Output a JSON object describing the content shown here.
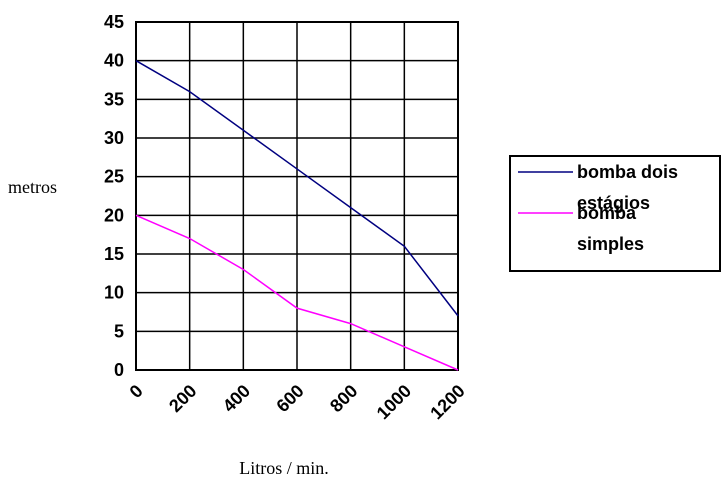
{
  "chart_data": {
    "type": "line",
    "title": "",
    "xlabel": "Litros / min.",
    "ylabel": "metros",
    "x": [
      0,
      200,
      400,
      600,
      800,
      1000,
      1200
    ],
    "x_ticks": [
      "0",
      "200",
      "400",
      "600",
      "800",
      "1000",
      "1200"
    ],
    "y_ticks": [
      "0",
      "5",
      "10",
      "15",
      "20",
      "25",
      "30",
      "35",
      "40",
      "45"
    ],
    "xlim": [
      0,
      1200
    ],
    "ylim": [
      0,
      45
    ],
    "grid": true,
    "legend_position": "right",
    "series": [
      {
        "name": "bomba dois estágios",
        "legend_lines": [
          "bomba dois",
          "estágios"
        ],
        "color": "#000080",
        "values": [
          40,
          36,
          31,
          26,
          21,
          16,
          7
        ]
      },
      {
        "name": "bomba simples",
        "legend_lines": [
          "bomba",
          "simples"
        ],
        "color": "#FF00FF",
        "values": [
          20,
          17,
          13,
          8,
          6,
          3,
          0
        ]
      }
    ]
  }
}
